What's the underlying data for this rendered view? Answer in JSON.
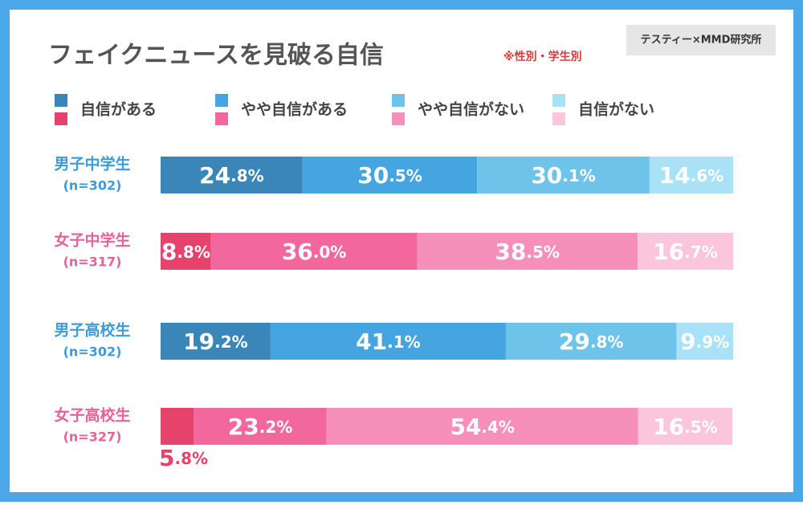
{
  "chart_data": {
    "type": "bar",
    "orientation": "horizontal",
    "stacked": true,
    "title": "フェイクニュースを見破る自信",
    "subtitle": "※性別・学生別",
    "source": "テスティー×MMD研究所",
    "categories": [
      "男子中学生",
      "女子中学生",
      "男子高校生",
      "女子高校生"
    ],
    "category_notes": [
      "(n=302)",
      "(n=317)",
      "(n=302)",
      "(n=327)"
    ],
    "category_colors": [
      "#3d9bdb",
      "#e8629a",
      "#3d9bdb",
      "#e8629a"
    ],
    "xlim": [
      0,
      100
    ],
    "series": [
      {
        "name": "自信がある",
        "colors": [
          "#3a86b8",
          "#e5436b",
          "#3a86b8",
          "#e5436b"
        ],
        "values": [
          24.8,
          8.8,
          19.2,
          5.8
        ],
        "value_labels": [
          "24.8%",
          "8.8%",
          "19.2%",
          "5.8%"
        ]
      },
      {
        "name": "やや自信がある",
        "colors": [
          "#45a5e0",
          "#f2679c",
          "#45a5e0",
          "#f2679c"
        ],
        "values": [
          30.5,
          36.0,
          41.1,
          23.2
        ],
        "value_labels": [
          "30.5%",
          "36.0%",
          "41.1%",
          "23.2%"
        ]
      },
      {
        "name": "やや自信がない",
        "colors": [
          "#6ec3ea",
          "#f78fbb",
          "#6ec3ea",
          "#f78fbb"
        ],
        "values": [
          30.1,
          38.5,
          29.8,
          54.4
        ],
        "value_labels": [
          "30.1%",
          "38.5%",
          "29.8%",
          "54.4%"
        ]
      },
      {
        "name": "自信がない",
        "colors": [
          "#a9e1f7",
          "#fbc6dc",
          "#a9e1f7",
          "#fbc6dc"
        ],
        "values": [
          14.6,
          16.7,
          9.9,
          16.5
        ],
        "value_labels": [
          "14.6%",
          "16.7%",
          "9.9%",
          "16.5%"
        ]
      }
    ]
  }
}
